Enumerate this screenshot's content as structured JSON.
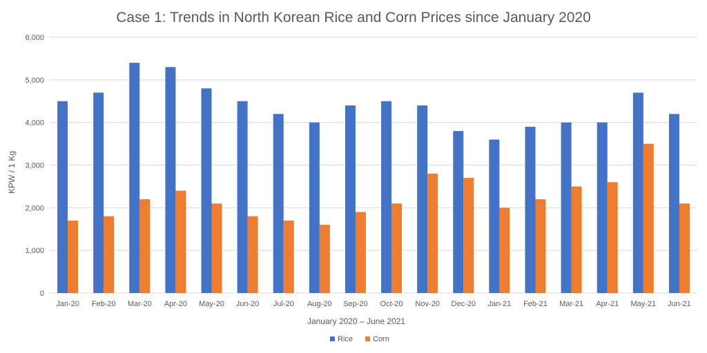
{
  "chart_data": {
    "type": "bar",
    "title": "Case 1: Trends in North Korean Rice and Corn Prices since January 2020",
    "xlabel": "January 2020 – June 2021",
    "ylabel": "KPW / 1 Kg",
    "ylim": [
      0,
      6000
    ],
    "yticks": [
      "0",
      "1,000",
      "2,000",
      "3,000",
      "4,000",
      "5,000",
      "6,000"
    ],
    "categories": [
      "Jan-20",
      "Feb-20",
      "Mar-20",
      "Apr-20",
      "May-20",
      "Jun-20",
      "Jul-20",
      "Aug-20",
      "Sep-20",
      "Oct-20",
      "Nov-20",
      "Dec-20",
      "Jan-21",
      "Feb-21",
      "Mar-21",
      "Apr-21",
      "May-21",
      "Jun-21"
    ],
    "series": [
      {
        "name": "Rice",
        "color": "#4472c4",
        "values": [
          4500,
          4700,
          5400,
          5300,
          4800,
          4500,
          4200,
          4000,
          4400,
          4500,
          4400,
          3800,
          3600,
          3900,
          4000,
          4000,
          4700,
          4200
        ]
      },
      {
        "name": "Corn",
        "color": "#ed7d31",
        "values": [
          1700,
          1800,
          2200,
          2400,
          2100,
          1800,
          1700,
          1600,
          1900,
          2100,
          2800,
          2700,
          2000,
          2200,
          2500,
          2600,
          3500,
          2100
        ]
      }
    ],
    "grid": true,
    "legend_position": "bottom"
  }
}
